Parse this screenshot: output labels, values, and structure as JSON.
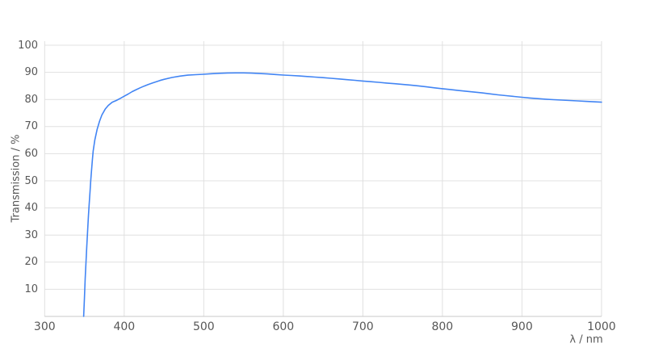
{
  "chart_data": {
    "type": "line",
    "xlabel": "λ / nm",
    "ylabel": "Transmission / %",
    "xlim": [
      300,
      1000
    ],
    "ylim": [
      0,
      100
    ],
    "x_ticks": [
      300,
      400,
      500,
      600,
      700,
      800,
      900,
      1000
    ],
    "y_ticks": [
      10,
      20,
      30,
      40,
      50,
      60,
      70,
      80,
      90,
      100
    ],
    "grid": true,
    "legend": "none",
    "colors": {
      "line": "#4285f4",
      "grid": "#e0e0e0",
      "axis": "#c8c8c8",
      "tick_text": "#575757"
    },
    "series": [
      {
        "name": "Transmission",
        "points": [
          [
            349,
            0
          ],
          [
            350,
            7
          ],
          [
            351,
            14
          ],
          [
            352,
            20
          ],
          [
            353,
            26
          ],
          [
            354,
            31.5
          ],
          [
            355,
            37
          ],
          [
            356,
            41.7
          ],
          [
            357,
            46
          ],
          [
            358,
            50.2
          ],
          [
            359,
            54
          ],
          [
            360,
            57.7
          ],
          [
            361,
            61
          ],
          [
            363,
            65
          ],
          [
            366,
            69
          ],
          [
            369,
            72
          ],
          [
            372,
            74.3
          ],
          [
            376,
            76.4
          ],
          [
            380,
            77.8
          ],
          [
            385,
            79
          ],
          [
            390,
            79.6
          ],
          [
            395,
            80.4
          ],
          [
            400,
            81.2
          ],
          [
            405,
            82
          ],
          [
            410,
            82.9
          ],
          [
            415,
            83.6
          ],
          [
            420,
            84.3
          ],
          [
            425,
            84.9
          ],
          [
            430,
            85.5
          ],
          [
            435,
            86
          ],
          [
            440,
            86.5
          ],
          [
            445,
            87
          ],
          [
            450,
            87.4
          ],
          [
            460,
            88.1
          ],
          [
            470,
            88.6
          ],
          [
            480,
            88.95
          ],
          [
            490,
            89.15
          ],
          [
            500,
            89.3
          ],
          [
            510,
            89.5
          ],
          [
            520,
            89.65
          ],
          [
            530,
            89.75
          ],
          [
            540,
            89.8
          ],
          [
            550,
            89.8
          ],
          [
            560,
            89.7
          ],
          [
            570,
            89.55
          ],
          [
            580,
            89.4
          ],
          [
            590,
            89.2
          ],
          [
            600,
            89
          ],
          [
            610,
            88.85
          ],
          [
            620,
            88.65
          ],
          [
            630,
            88.45
          ],
          [
            640,
            88.25
          ],
          [
            650,
            88.05
          ],
          [
            660,
            87.8
          ],
          [
            670,
            87.55
          ],
          [
            680,
            87.3
          ],
          [
            690,
            87.05
          ],
          [
            700,
            86.8
          ],
          [
            710,
            86.55
          ],
          [
            720,
            86.3
          ],
          [
            730,
            86.05
          ],
          [
            740,
            85.8
          ],
          [
            750,
            85.55
          ],
          [
            760,
            85.3
          ],
          [
            770,
            85
          ],
          [
            780,
            84.65
          ],
          [
            790,
            84.3
          ],
          [
            800,
            83.95
          ],
          [
            810,
            83.65
          ],
          [
            820,
            83.3
          ],
          [
            830,
            83
          ],
          [
            840,
            82.7
          ],
          [
            850,
            82.4
          ],
          [
            860,
            82.05
          ],
          [
            870,
            81.7
          ],
          [
            880,
            81.4
          ],
          [
            890,
            81.1
          ],
          [
            900,
            80.8
          ],
          [
            910,
            80.55
          ],
          [
            920,
            80.3
          ],
          [
            930,
            80.1
          ],
          [
            940,
            79.9
          ],
          [
            950,
            79.75
          ],
          [
            960,
            79.6
          ],
          [
            970,
            79.45
          ],
          [
            980,
            79.3
          ],
          [
            990,
            79.15
          ],
          [
            1000,
            79
          ]
        ]
      }
    ]
  }
}
